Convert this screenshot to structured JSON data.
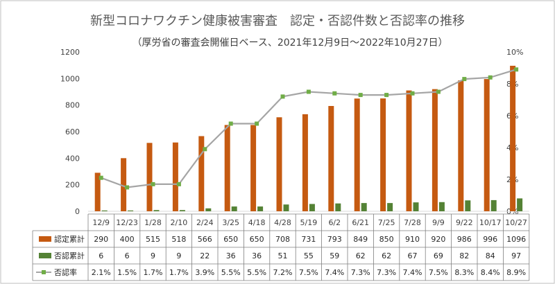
{
  "chart_data": {
    "type": "bar",
    "title": "新型コロナワクチン健康被害審査　認定・否認件数と否認率の推移",
    "subtitle": "（厚労省の審査会開催日ベース、2021年12月9日～2022年10月27日）",
    "categories": [
      "12/9",
      "12/23",
      "1/28",
      "2/10",
      "2/24",
      "3/25",
      "4/18",
      "4/28",
      "5/19",
      "6/2",
      "6/21",
      "7/25",
      "7/28",
      "9/9",
      "9/22",
      "10/17",
      "10/27"
    ],
    "series": [
      {
        "name": "認定累計",
        "type": "bar",
        "axis": "left",
        "color": "#C55A11",
        "values": [
          290,
          400,
          515,
          518,
          566,
          650,
          650,
          708,
          731,
          793,
          849,
          850,
          910,
          920,
          986,
          996,
          1096
        ]
      },
      {
        "name": "否認累計",
        "type": "bar",
        "axis": "left",
        "color": "#548235",
        "values": [
          6,
          6,
          9,
          9,
          22,
          36,
          36,
          51,
          55,
          59,
          62,
          62,
          67,
          69,
          82,
          84,
          97
        ]
      },
      {
        "name": "否認率",
        "type": "line",
        "axis": "right",
        "color": "#A5A5A5",
        "marker_color": "#70AD47",
        "values": [
          2.1,
          1.5,
          1.7,
          1.7,
          3.9,
          5.5,
          5.5,
          7.2,
          7.5,
          7.4,
          7.3,
          7.3,
          7.4,
          7.5,
          8.3,
          8.4,
          8.9
        ],
        "labels": [
          "2.1%",
          "1.5%",
          "1.7%",
          "1.7%",
          "3.9%",
          "5.5%",
          "5.5%",
          "7.2%",
          "7.5%",
          "7.4%",
          "7.3%",
          "7.3%",
          "7.4%",
          "7.5%",
          "8.3%",
          "8.4%",
          "8.9%"
        ]
      }
    ],
    "y_left": {
      "min": 0,
      "max": 1200,
      "ticks": [
        0,
        200,
        400,
        600,
        800,
        1000,
        1200
      ]
    },
    "y_right": {
      "min": 0,
      "max": 10,
      "ticks": [
        0,
        2,
        4,
        6,
        8,
        10
      ],
      "tick_labels": [
        "0%",
        "2%",
        "4%",
        "6%",
        "8%",
        "10%"
      ]
    },
    "grid": false,
    "legend": "data-table"
  }
}
